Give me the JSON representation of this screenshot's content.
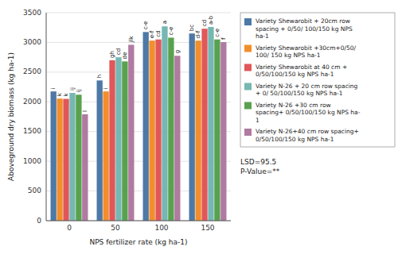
{
  "chart_data": {
    "type": "bar",
    "categories": [
      "0",
      "50",
      "100",
      "150"
    ],
    "series": [
      {
        "name": "Variety Shewarobit + 20cm row\nspacing + 0/50/ 100/150 kg NPS\nha-1",
        "values": [
          2175,
          2360,
          3175,
          3150
        ],
        "annotations": [
          "i",
          "h",
          "c-e",
          "bc"
        ]
      },
      {
        "name": "Variety Shewarobit +30cm+0/50/\n100/ 150 kg NPS ha-1",
        "values": [
          2055,
          2175,
          3030,
          3030
        ],
        "annotations": [
          "k",
          "i",
          "e-f",
          "d-f"
        ]
      },
      {
        "name": "Variety Shewarobit at 40 cm +\n0/50/100/150 kg NPS ha-1",
        "values": [
          2050,
          2700,
          3050,
          3230
        ],
        "annotations": [
          "k",
          "gh",
          "cd",
          "cd"
        ]
      },
      {
        "name": "Variety N-26 + 20 cm row spacing\n+ 0/ 50/100/150 kg NPS ha-1",
        "values": [
          2150,
          2750,
          3270,
          3260
        ],
        "annotations": [
          "ij",
          "cd",
          "a",
          "a-b"
        ]
      },
      {
        "name": "Variety N-26 +30 cm row\nspacing+ 0/50/100/150 kg NPS ha-\n1",
        "values": [
          2120,
          2680,
          3080,
          3050
        ],
        "annotations": [
          "ij",
          "de",
          "c-e",
          "c-e"
        ]
      },
      {
        "name": "Variety N-26+40 cm row spacing+\n0/50/100/150 kg NPS ha-1",
        "values": [
          1790,
          2960,
          2775,
          3005
        ],
        "annotations": [
          "l",
          "jlk",
          "g",
          "f"
        ]
      }
    ],
    "xlabel": "NPS fertilizer rate (kg ha-1)",
    "ylabel": "Aboveground dry biomass (kg ha-1)",
    "ylim": [
      0,
      3500
    ],
    "yticks": [
      0,
      500,
      1000,
      1500,
      2000,
      2500,
      3000,
      3500
    ],
    "grid": true,
    "legend": "right",
    "annotations": [
      "LSD=95.5\nP-Value=**"
    ]
  }
}
